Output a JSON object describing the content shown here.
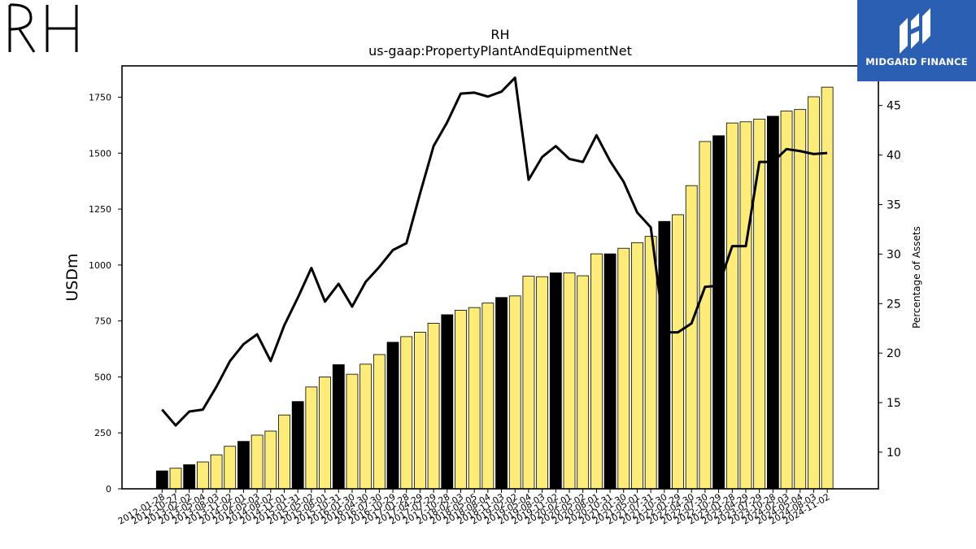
{
  "logos": {
    "company_mark": "RH",
    "publisher": "MIDGARD FINANCE"
  },
  "colors": {
    "bar_annual": "#000000",
    "bar_quarterly": "#fdec78",
    "line": "#000000",
    "publisher_bg": "#2b5fb3"
  },
  "chart_data": {
    "type": "bar",
    "title": "RH",
    "subtitle": "us-gaap:PropertyPlantAndEquipmentNet",
    "ylabel": "USDm",
    "y2label": "Percentage of Assets",
    "ylim": [
      0,
      1890
    ],
    "y2lim": [
      6.3,
      49.0
    ],
    "yticks": [
      0,
      250,
      500,
      750,
      1000,
      1250,
      1500,
      1750
    ],
    "y2ticks": [
      10,
      15,
      20,
      25,
      30,
      35,
      40,
      45
    ],
    "grid": false,
    "categories": [
      "2012-01-28",
      "2012-10-27",
      "2013-02-02",
      "2013-05-04",
      "2013-08-03",
      "2013-11-02",
      "2014-02-01",
      "2014-05-03",
      "2014-08-02",
      "2014-11-01",
      "2015-01-31",
      "2015-05-02",
      "2015-08-01",
      "2015-10-31",
      "2016-01-30",
      "2016-04-30",
      "2016-07-30",
      "2016-10-29",
      "2017-01-28",
      "2017-04-29",
      "2017-07-29",
      "2017-10-28",
      "2018-02-03",
      "2018-05-05",
      "2018-08-04",
      "2018-11-03",
      "2019-02-02",
      "2019-05-04",
      "2019-08-03",
      "2019-11-02",
      "2020-02-01",
      "2020-05-02",
      "2020-08-01",
      "2020-10-31",
      "2021-01-30",
      "2021-05-01",
      "2021-07-31",
      "2021-10-30",
      "2022-01-29",
      "2022-04-30",
      "2022-07-30",
      "2022-10-29",
      "2023-01-28",
      "2023-04-29",
      "2023-07-29",
      "2023-10-28",
      "2024-02-03",
      "2024-05-04",
      "2024-08-03",
      "2024-11-02"
    ],
    "annual_flags": [
      1,
      0,
      1,
      0,
      0,
      0,
      1,
      0,
      0,
      0,
      1,
      0,
      0,
      1,
      0,
      0,
      0,
      1,
      0,
      0,
      0,
      1,
      0,
      0,
      0,
      1,
      0,
      0,
      0,
      1,
      0,
      0,
      0,
      1,
      0,
      0,
      0,
      1,
      0,
      0,
      0,
      1,
      0,
      0,
      0,
      1,
      0,
      0,
      0,
      0
    ],
    "series": [
      {
        "name": "",
        "kind": "bar",
        "axis": "left",
        "values": [
          80,
          92,
          108,
          120,
          152,
          190,
          212,
          240,
          258,
          330,
          390,
          455,
          500,
          555,
          512,
          557,
          600,
          655,
          680,
          700,
          740,
          778,
          798,
          810,
          830,
          855,
          862,
          950,
          948,
          965,
          965,
          952,
          1050,
          1050,
          1075,
          1100,
          1128,
          1195,
          1225,
          1355,
          1552,
          1578,
          1635,
          1640,
          1652,
          1665,
          1688,
          1695,
          1752,
          1795
        ]
      },
      {
        "name": "",
        "kind": "line",
        "axis": "right",
        "values": [
          14.3,
          12.7,
          14.1,
          14.3,
          16.6,
          19.2,
          20.9,
          21.9,
          19.2,
          22.8,
          25.6,
          28.6,
          25.2,
          27.0,
          24.7,
          27.2,
          28.7,
          30.4,
          31.1,
          36.1,
          40.9,
          43.3,
          46.2,
          46.3,
          45.9,
          46.4,
          47.8,
          37.5,
          39.8,
          40.9,
          39.6,
          39.3,
          42.0,
          39.4,
          37.3,
          34.2,
          32.7,
          22.1,
          22.1,
          23.0,
          26.7,
          26.8,
          30.8,
          30.8,
          39.3,
          39.3,
          40.6,
          40.4,
          40.1,
          40.2
        ]
      }
    ]
  }
}
